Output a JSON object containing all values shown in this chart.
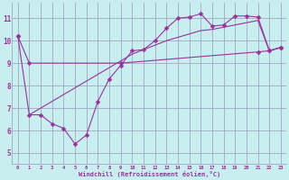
{
  "background_color": "#c8eef0",
  "grid_color": "#9999bb",
  "line_color": "#993399",
  "xlim": [
    -0.5,
    23.5
  ],
  "ylim": [
    4.5,
    11.7
  ],
  "yticks": [
    5,
    6,
    7,
    8,
    9,
    10,
    11
  ],
  "xticks": [
    0,
    1,
    2,
    3,
    4,
    5,
    6,
    7,
    8,
    9,
    10,
    11,
    12,
    13,
    14,
    15,
    16,
    17,
    18,
    19,
    20,
    21,
    22,
    23
  ],
  "xlabel": "Windchill (Refroidissement éolien,°C)",
  "line1_x": [
    0,
    1,
    2,
    3,
    4,
    5,
    6,
    7,
    8,
    9,
    10,
    11,
    12,
    13,
    14,
    15,
    16,
    17,
    18,
    19,
    20,
    21,
    22,
    23
  ],
  "line1_y": [
    10.2,
    6.7,
    6.7,
    6.3,
    6.1,
    5.4,
    5.8,
    7.3,
    8.3,
    8.9,
    9.55,
    9.6,
    10.0,
    10.55,
    11.0,
    11.05,
    11.2,
    10.65,
    10.7,
    11.1,
    11.1,
    11.05,
    9.55,
    9.7
  ],
  "line2_x": [
    0,
    1,
    9,
    21,
    22,
    23
  ],
  "line2_y": [
    10.2,
    9.0,
    9.0,
    9.5,
    9.55,
    9.7
  ],
  "line3_x": [
    1,
    2,
    3,
    4,
    5,
    6,
    7,
    8,
    9,
    10,
    11,
    12,
    13,
    14,
    15,
    16,
    17,
    18,
    19,
    20,
    21,
    22,
    23
  ],
  "line3_y": [
    6.7,
    7.0,
    7.3,
    7.6,
    7.9,
    8.2,
    8.5,
    8.8,
    9.1,
    9.4,
    9.6,
    9.8,
    10.0,
    10.15,
    10.3,
    10.45,
    10.5,
    10.6,
    10.7,
    10.8,
    10.9,
    9.55,
    9.7
  ],
  "font_color": "#993399",
  "markersize": 2.5
}
